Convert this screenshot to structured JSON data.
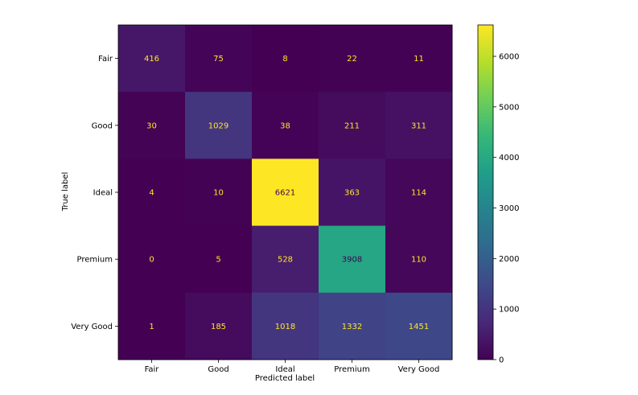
{
  "chart_data": {
    "type": "heatmap",
    "title": "",
    "xlabel": "Predicted label",
    "ylabel": "True label",
    "x_categories": [
      "Fair",
      "Good",
      "Ideal",
      "Premium",
      "Very Good"
    ],
    "y_categories": [
      "Fair",
      "Good",
      "Ideal",
      "Premium",
      "Very Good"
    ],
    "values": [
      [
        416,
        75,
        8,
        22,
        11
      ],
      [
        30,
        1029,
        38,
        211,
        311
      ],
      [
        4,
        10,
        6621,
        363,
        114
      ],
      [
        0,
        5,
        528,
        3908,
        110
      ],
      [
        1,
        185,
        1018,
        1332,
        1451
      ]
    ],
    "colorbar": {
      "colormap": "viridis",
      "range": [
        0,
        6621
      ],
      "ticks": [
        0,
        1000,
        2000,
        3000,
        4000,
        5000,
        6000
      ]
    },
    "colors": {
      "text_on_dark": "#fde725",
      "text_on_light": "#440154",
      "axis": "#000000"
    }
  }
}
